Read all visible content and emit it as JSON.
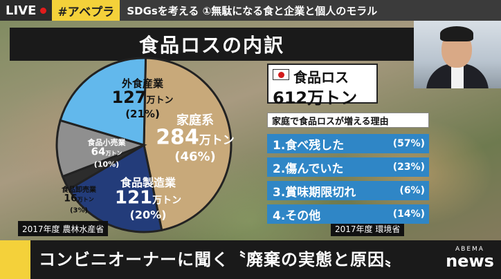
{
  "header": {
    "live_label": "LIVE",
    "tag": "#アベプラ",
    "headline": "SDGsを考える ①無駄になる食と企業と個人のモラル"
  },
  "title": "食品ロスの内訳",
  "chart_data": {
    "type": "pie",
    "title": "食品ロスの内訳",
    "unit": "万トン",
    "slices": [
      {
        "name": "家庭系",
        "value": 284,
        "percent": "(46%)",
        "color": "#c8a97a"
      },
      {
        "name": "食品製造業",
        "value": 121,
        "percent": "(20%)",
        "color": "#233c7a"
      },
      {
        "name": "食品卸売業",
        "value": 16,
        "percent": "(3%)",
        "color": "#2c2c2c"
      },
      {
        "name": "食品小売業",
        "value": 64,
        "percent": "(10%)",
        "color": "#8f8f8f"
      },
      {
        "name": "外食産業",
        "value": 127,
        "percent": "(21%)",
        "color": "#62b8ec"
      }
    ]
  },
  "source_left": "2017年度 農林水産省",
  "source_right": "2017年度 環境省",
  "total": {
    "line1": "食品ロス",
    "line2": "612万トン"
  },
  "reasons": {
    "header": "家庭で食品ロスが増える理由",
    "items": [
      {
        "label": "1.食べ残した",
        "percent": "(57%)"
      },
      {
        "label": "2.傷んでいた",
        "percent": "(23%)"
      },
      {
        "label": "3.賞味期限切れ",
        "percent": "(6%)"
      },
      {
        "label": "4.その他",
        "percent": "(14%)"
      }
    ]
  },
  "bottom": {
    "text": "コンビニオーナーに聞く〝廃棄の実態と原因〟",
    "logo_top": "ABEMA",
    "logo_bottom": "news"
  }
}
